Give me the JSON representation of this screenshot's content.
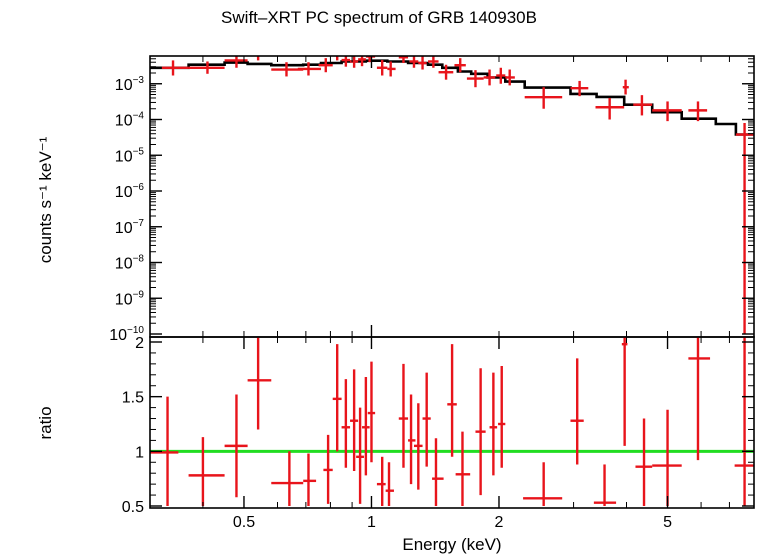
{
  "chart_data": [
    {
      "type": "scatter",
      "title": "Swift–XRT PC spectrum of GRB 140930B",
      "ylabel": "counts s⁻¹ keV⁻¹",
      "xlabel": "",
      "xscale": "log",
      "yscale": "log",
      "xlim": [
        0.3,
        8.0
      ],
      "ylim": [
        1e-10,
        0.01
      ],
      "yticks": [
        {
          "value": 0.001,
          "base": "10",
          "exp": "−3"
        },
        {
          "value": 0.0001,
          "base": "10",
          "exp": "−4"
        },
        {
          "value": 1e-05,
          "base": "10",
          "exp": "−5"
        },
        {
          "value": 1e-06,
          "base": "10",
          "exp": "−6"
        },
        {
          "value": 1e-07,
          "base": "10",
          "exp": "−7"
        },
        {
          "value": 1e-08,
          "base": "10",
          "exp": "−8"
        },
        {
          "value": 1e-09,
          "base": "10",
          "exp": "−9"
        },
        {
          "value": 1e-10,
          "base": "10",
          "exp": "−10"
        }
      ],
      "colors": {
        "data": "#e8141b",
        "model": "#000000"
      },
      "series": [
        {
          "kind": "data",
          "points": [
            {
              "x": 0.34,
              "xlo": 0.32,
              "xhi": 0.37,
              "y": 0.0028,
              "ylo": 0.0017,
              "yhi": 0.0045
            },
            {
              "x": 0.41,
              "xlo": 0.37,
              "xhi": 0.45,
              "y": 0.0028,
              "ylo": 0.0019,
              "yhi": 0.0042
            },
            {
              "x": 0.48,
              "xlo": 0.45,
              "xhi": 0.51,
              "y": 0.0045,
              "ylo": 0.0028,
              "yhi": 0.0072
            },
            {
              "x": 0.54,
              "xlo": 0.51,
              "xhi": 0.58,
              "y": 0.0065,
              "ylo": 0.0045,
              "yhi": 0.0095
            },
            {
              "x": 0.63,
              "xlo": 0.58,
              "xhi": 0.69,
              "y": 0.0025,
              "ylo": 0.0016,
              "yhi": 0.004
            },
            {
              "x": 0.71,
              "xlo": 0.67,
              "xhi": 0.76,
              "y": 0.0026,
              "ylo": 0.0017,
              "yhi": 0.004
            },
            {
              "x": 0.78,
              "xlo": 0.75,
              "xhi": 0.81,
              "y": 0.0033,
              "ylo": 0.0021,
              "yhi": 0.0052
            },
            {
              "x": 0.83,
              "xlo": 0.81,
              "xhi": 0.85,
              "y": 0.0065,
              "ylo": 0.0045,
              "yhi": 0.0095
            },
            {
              "x": 0.87,
              "xlo": 0.85,
              "xhi": 0.89,
              "y": 0.0046,
              "ylo": 0.003,
              "yhi": 0.0071
            },
            {
              "x": 0.91,
              "xlo": 0.89,
              "xhi": 0.93,
              "y": 0.0042,
              "ylo": 0.0028,
              "yhi": 0.0063
            },
            {
              "x": 0.95,
              "xlo": 0.93,
              "xhi": 0.97,
              "y": 0.0048,
              "ylo": 0.0031,
              "yhi": 0.0074
            },
            {
              "x": 0.99,
              "xlo": 0.97,
              "xhi": 1.02,
              "y": 0.0058,
              "ylo": 0.004,
              "yhi": 0.0085
            },
            {
              "x": 1.06,
              "xlo": 1.03,
              "xhi": 1.09,
              "y": 0.0028,
              "ylo": 0.0017,
              "yhi": 0.0046
            },
            {
              "x": 1.11,
              "xlo": 1.09,
              "xhi": 1.14,
              "y": 0.0026,
              "ylo": 0.0016,
              "yhi": 0.0042
            },
            {
              "x": 1.19,
              "xlo": 1.16,
              "xhi": 1.22,
              "y": 0.0055,
              "ylo": 0.0038,
              "yhi": 0.008
            },
            {
              "x": 1.26,
              "xlo": 1.23,
              "xhi": 1.29,
              "y": 0.0042,
              "ylo": 0.0028,
              "yhi": 0.0062
            },
            {
              "x": 1.32,
              "xlo": 1.29,
              "xhi": 1.35,
              "y": 0.0038,
              "ylo": 0.0025,
              "yhi": 0.0058
            },
            {
              "x": 1.4,
              "xlo": 1.36,
              "xhi": 1.44,
              "y": 0.0042,
              "ylo": 0.0028,
              "yhi": 0.0063
            },
            {
              "x": 1.5,
              "xlo": 1.44,
              "xhi": 1.56,
              "y": 0.0021,
              "ylo": 0.0013,
              "yhi": 0.0034
            },
            {
              "x": 1.62,
              "xlo": 1.57,
              "xhi": 1.67,
              "y": 0.0033,
              "ylo": 0.0021,
              "yhi": 0.0052
            },
            {
              "x": 1.76,
              "xlo": 1.68,
              "xhi": 1.84,
              "y": 0.0014,
              "ylo": 0.0008,
              "yhi": 0.0024
            },
            {
              "x": 1.9,
              "xlo": 1.84,
              "xhi": 1.96,
              "y": 0.0015,
              "ylo": 0.0009,
              "yhi": 0.0025
            },
            {
              "x": 2.02,
              "xlo": 1.97,
              "xhi": 2.07,
              "y": 0.0017,
              "ylo": 0.001,
              "yhi": 0.0028
            },
            {
              "x": 2.12,
              "xlo": 2.07,
              "xhi": 2.18,
              "y": 0.0015,
              "ylo": 0.0009,
              "yhi": 0.0025
            },
            {
              "x": 2.55,
              "xlo": 2.3,
              "xhi": 2.82,
              "y": 0.00042,
              "ylo": 0.0002,
              "yhi": 0.0008
            },
            {
              "x": 3.1,
              "xlo": 2.95,
              "xhi": 3.25,
              "y": 0.00075,
              "ylo": 0.00045,
              "yhi": 0.0012
            },
            {
              "x": 3.65,
              "xlo": 3.38,
              "xhi": 3.95,
              "y": 0.00022,
              "ylo": 0.0001,
              "yhi": 0.0004
            },
            {
              "x": 3.98,
              "xlo": 3.92,
              "xhi": 4.05,
              "y": 0.0008,
              "ylo": 0.0005,
              "yhi": 0.0013
            },
            {
              "x": 4.35,
              "xlo": 4.15,
              "xhi": 4.6,
              "y": 0.00026,
              "ylo": 0.00013,
              "yhi": 0.00048
            },
            {
              "x": 5.0,
              "xlo": 4.6,
              "xhi": 5.4,
              "y": 0.00018,
              "ylo": 9e-05,
              "yhi": 0.00032
            },
            {
              "x": 5.9,
              "xlo": 5.6,
              "xhi": 6.2,
              "y": 0.00018,
              "ylo": 9e-05,
              "yhi": 0.00032
            },
            {
              "x": 7.6,
              "xlo": 7.25,
              "xhi": 8.0,
              "y": 3.8e-05,
              "ylo": 1e-10,
              "yhi": 8e-05
            }
          ]
        },
        {
          "kind": "model",
          "steps": [
            {
              "xlo": 0.3,
              "xhi": 0.37,
              "y": 0.0028
            },
            {
              "xlo": 0.37,
              "xhi": 0.45,
              "y": 0.0034
            },
            {
              "xlo": 0.45,
              "xhi": 0.51,
              "y": 0.0039
            },
            {
              "xlo": 0.51,
              "xhi": 0.58,
              "y": 0.0036
            },
            {
              "xlo": 0.58,
              "xhi": 0.69,
              "y": 0.0033
            },
            {
              "xlo": 0.69,
              "xhi": 0.76,
              "y": 0.0034
            },
            {
              "xlo": 0.76,
              "xhi": 0.85,
              "y": 0.0038
            },
            {
              "xlo": 0.85,
              "xhi": 0.97,
              "y": 0.0042
            },
            {
              "xlo": 0.97,
              "xhi": 1.09,
              "y": 0.0044
            },
            {
              "xlo": 1.09,
              "xhi": 1.22,
              "y": 0.0042
            },
            {
              "xlo": 1.22,
              "xhi": 1.36,
              "y": 0.0038
            },
            {
              "xlo": 1.36,
              "xhi": 1.47,
              "y": 0.0034
            },
            {
              "xlo": 1.47,
              "xhi": 1.6,
              "y": 0.0028
            },
            {
              "xlo": 1.6,
              "xhi": 1.72,
              "y": 0.0022
            },
            {
              "xlo": 1.72,
              "xhi": 1.88,
              "y": 0.0019
            },
            {
              "xlo": 1.88,
              "xhi": 2.07,
              "y": 0.0015
            },
            {
              "xlo": 2.07,
              "xhi": 2.3,
              "y": 0.00115
            },
            {
              "xlo": 2.3,
              "xhi": 2.95,
              "y": 0.00078
            },
            {
              "xlo": 2.95,
              "xhi": 3.4,
              "y": 0.00052
            },
            {
              "xlo": 3.4,
              "xhi": 3.95,
              "y": 0.00043
            },
            {
              "xlo": 3.95,
              "xhi": 4.6,
              "y": 0.00026
            },
            {
              "xlo": 4.6,
              "xhi": 5.4,
              "y": 0.00016
            },
            {
              "xlo": 5.4,
              "xhi": 6.5,
              "y": 0.000105
            },
            {
              "xlo": 6.5,
              "xhi": 7.25,
              "y": 7.5e-05
            },
            {
              "xlo": 7.25,
              "xhi": 8.0,
              "y": 3.8e-05
            }
          ]
        }
      ]
    },
    {
      "type": "scatter",
      "ylabel": "ratio",
      "xlabel": "Energy (keV)",
      "xscale": "log",
      "yscale": "linear",
      "xlim": [
        0.3,
        8.0
      ],
      "ylim": [
        0.5,
        2.05
      ],
      "xticks": [
        {
          "value": 0.5,
          "label": "0.5"
        },
        {
          "value": 1,
          "label": "1"
        },
        {
          "value": 2,
          "label": "2"
        },
        {
          "value": 5,
          "label": "5"
        }
      ],
      "yticks": [
        {
          "value": 0.5,
          "label": "0.5"
        },
        {
          "value": 1,
          "label": "1"
        },
        {
          "value": 1.5,
          "label": "1.5"
        },
        {
          "value": 2,
          "label": "2"
        }
      ],
      "reference_line": {
        "y": 1,
        "color": "#22dd22"
      },
      "colors": {
        "data": "#e8141b"
      },
      "points": [
        {
          "x": 0.33,
          "xlo": 0.3,
          "xhi": 0.35,
          "y": 0.99,
          "ylo": 0.5,
          "yhi": 1.5
        },
        {
          "x": 0.4,
          "xlo": 0.37,
          "xhi": 0.45,
          "y": 0.78,
          "ylo": 0.5,
          "yhi": 1.13
        },
        {
          "x": 0.48,
          "xlo": 0.45,
          "xhi": 0.51,
          "y": 1.05,
          "ylo": 0.58,
          "yhi": 1.52
        },
        {
          "x": 0.54,
          "xlo": 0.51,
          "xhi": 0.58,
          "y": 1.65,
          "ylo": 1.2,
          "yhi": 2.05
        },
        {
          "x": 0.64,
          "xlo": 0.58,
          "xhi": 0.69,
          "y": 0.71,
          "ylo": 0.5,
          "yhi": 1.0
        },
        {
          "x": 0.71,
          "xlo": 0.69,
          "xhi": 0.74,
          "y": 0.73,
          "ylo": 0.5,
          "yhi": 0.98
        },
        {
          "x": 0.79,
          "xlo": 0.77,
          "xhi": 0.81,
          "y": 0.83,
          "ylo": 0.52,
          "yhi": 1.15
        },
        {
          "x": 0.83,
          "xlo": 0.81,
          "xhi": 0.85,
          "y": 1.48,
          "ylo": 1.0,
          "yhi": 1.98
        },
        {
          "x": 0.87,
          "xlo": 0.85,
          "xhi": 0.89,
          "y": 1.22,
          "ylo": 0.85,
          "yhi": 1.66
        },
        {
          "x": 0.91,
          "xlo": 0.89,
          "xhi": 0.93,
          "y": 1.28,
          "ylo": 0.82,
          "yhi": 1.75
        },
        {
          "x": 0.94,
          "xlo": 0.92,
          "xhi": 0.96,
          "y": 0.95,
          "ylo": 0.52,
          "yhi": 1.4
        },
        {
          "x": 0.97,
          "xlo": 0.95,
          "xhi": 0.99,
          "y": 1.22,
          "ylo": 0.78,
          "yhi": 1.68
        },
        {
          "x": 1.0,
          "xlo": 0.98,
          "xhi": 1.02,
          "y": 1.35,
          "ylo": 0.9,
          "yhi": 1.82
        },
        {
          "x": 1.06,
          "xlo": 1.03,
          "xhi": 1.08,
          "y": 0.7,
          "ylo": 0.5,
          "yhi": 0.95
        },
        {
          "x": 1.1,
          "xlo": 1.08,
          "xhi": 1.13,
          "y": 0.64,
          "ylo": 0.5,
          "yhi": 0.9
        },
        {
          "x": 1.19,
          "xlo": 1.16,
          "xhi": 1.22,
          "y": 1.3,
          "ylo": 0.85,
          "yhi": 1.8
        },
        {
          "x": 1.24,
          "xlo": 1.22,
          "xhi": 1.27,
          "y": 1.1,
          "ylo": 0.7,
          "yhi": 1.52
        },
        {
          "x": 1.29,
          "xlo": 1.26,
          "xhi": 1.32,
          "y": 1.05,
          "ylo": 0.65,
          "yhi": 1.44
        },
        {
          "x": 1.35,
          "xlo": 1.32,
          "xhi": 1.38,
          "y": 1.3,
          "ylo": 0.86,
          "yhi": 1.72
        },
        {
          "x": 1.42,
          "xlo": 1.39,
          "xhi": 1.48,
          "y": 0.75,
          "ylo": 0.5,
          "yhi": 1.12
        },
        {
          "x": 1.55,
          "xlo": 1.51,
          "xhi": 1.59,
          "y": 1.43,
          "ylo": 0.95,
          "yhi": 1.98
        },
        {
          "x": 1.64,
          "xlo": 1.58,
          "xhi": 1.71,
          "y": 0.79,
          "ylo": 0.5,
          "yhi": 1.18
        },
        {
          "x": 1.81,
          "xlo": 1.76,
          "xhi": 1.86,
          "y": 1.18,
          "ylo": 0.6,
          "yhi": 1.76
        },
        {
          "x": 1.94,
          "xlo": 1.9,
          "xhi": 1.98,
          "y": 1.22,
          "ylo": 0.78,
          "yhi": 1.72
        },
        {
          "x": 2.03,
          "xlo": 1.99,
          "xhi": 2.07,
          "y": 1.25,
          "ylo": 0.85,
          "yhi": 1.78
        },
        {
          "x": 2.55,
          "xlo": 2.28,
          "xhi": 2.82,
          "y": 0.57,
          "ylo": 0.5,
          "yhi": 0.9
        },
        {
          "x": 3.06,
          "xlo": 2.95,
          "xhi": 3.17,
          "y": 1.28,
          "ylo": 0.88,
          "yhi": 1.85
        },
        {
          "x": 3.55,
          "xlo": 3.35,
          "xhi": 3.78,
          "y": 0.53,
          "ylo": 0.5,
          "yhi": 0.88
        },
        {
          "x": 3.96,
          "xlo": 3.9,
          "xhi": 4.02,
          "y": 1.98,
          "ylo": 1.05,
          "yhi": 2.05
        },
        {
          "x": 4.4,
          "xlo": 4.2,
          "xhi": 4.6,
          "y": 0.86,
          "ylo": 0.5,
          "yhi": 1.3
        },
        {
          "x": 5.0,
          "xlo": 4.6,
          "xhi": 5.4,
          "y": 0.87,
          "ylo": 0.5,
          "yhi": 1.38
        },
        {
          "x": 5.9,
          "xlo": 5.6,
          "xhi": 6.3,
          "y": 1.85,
          "ylo": 0.92,
          "yhi": 2.05
        },
        {
          "x": 7.6,
          "xlo": 7.2,
          "xhi": 8.0,
          "y": 0.87,
          "ylo": 0.5,
          "yhi": 2.05
        }
      ]
    }
  ]
}
